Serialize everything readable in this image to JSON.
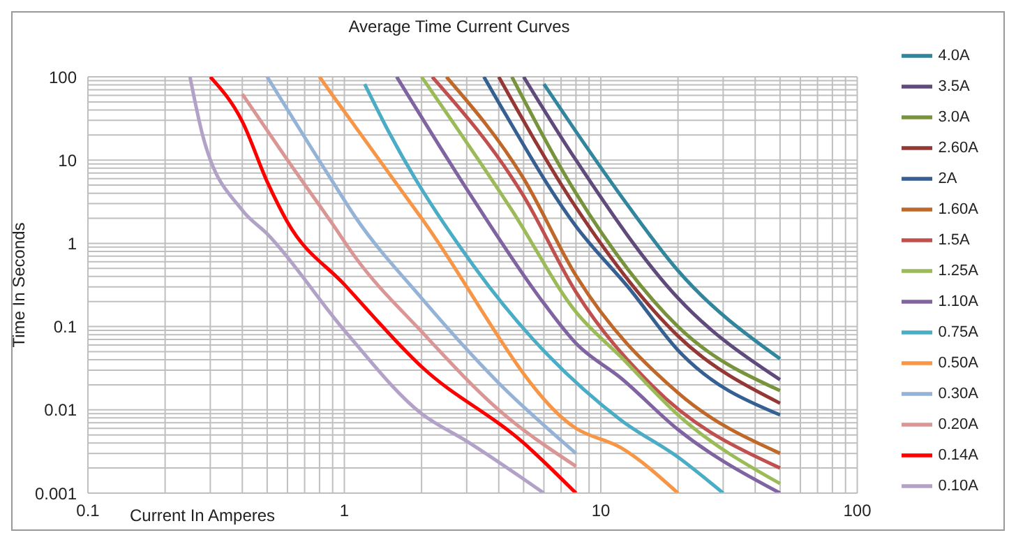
{
  "chart_data": {
    "type": "line",
    "title": "Average Time Current Curves",
    "xlabel": "Current In Amperes",
    "ylabel": "Time In Seconds",
    "log": "xy",
    "grid": true,
    "legend": "right",
    "marker": "none",
    "line_style": "solid",
    "xlim": [
      0.1,
      100
    ],
    "ylim": [
      0.001,
      100
    ],
    "xticks": [
      0.1,
      {
        "value": 0.2,
        "label": null
      },
      {
        "value": 0.3,
        "label": null
      },
      {
        "value": 0.4,
        "label": null
      },
      {
        "value": 0.5,
        "label": null
      },
      {
        "value": 0.6,
        "label": null
      },
      {
        "value": 0.7,
        "label": null
      },
      {
        "value": 0.8,
        "label": null
      },
      {
        "value": 0.9,
        "label": null
      },
      1,
      {
        "value": 2,
        "label": null
      },
      {
        "value": 3,
        "label": null
      },
      {
        "value": 4,
        "label": null
      },
      {
        "value": 5,
        "label": null
      },
      {
        "value": 6,
        "label": null
      },
      {
        "value": 7,
        "label": null
      },
      {
        "value": 8,
        "label": null
      },
      {
        "value": 9,
        "label": null
      },
      10,
      {
        "value": 20,
        "label": null
      },
      {
        "value": 30,
        "label": null
      },
      {
        "value": 40,
        "label": null
      },
      {
        "value": 50,
        "label": null
      },
      {
        "value": 60,
        "label": null
      },
      {
        "value": 70,
        "label": null
      },
      {
        "value": 80,
        "label": null
      },
      {
        "value": 90,
        "label": null
      },
      100
    ],
    "yticks": [
      0.001,
      {
        "value": 0.002,
        "label": null
      },
      {
        "value": 0.003,
        "label": null
      },
      {
        "value": 0.004,
        "label": null
      },
      {
        "value": 0.005,
        "label": null
      },
      {
        "value": 0.006,
        "label": null
      },
      {
        "value": 0.007,
        "label": null
      },
      {
        "value": 0.008,
        "label": null
      },
      {
        "value": 0.009,
        "label": null
      },
      0.01,
      {
        "value": 0.02,
        "label": null
      },
      {
        "value": 0.03,
        "label": null
      },
      {
        "value": 0.04,
        "label": null
      },
      {
        "value": 0.05,
        "label": null
      },
      {
        "value": 0.06,
        "label": null
      },
      {
        "value": 0.07,
        "label": null
      },
      {
        "value": 0.08,
        "label": null
      },
      {
        "value": 0.09,
        "label": null
      },
      0.1,
      {
        "value": 0.2,
        "label": null
      },
      {
        "value": 0.3,
        "label": null
      },
      {
        "value": 0.4,
        "label": null
      },
      {
        "value": 0.5,
        "label": null
      },
      {
        "value": 0.6,
        "label": null
      },
      {
        "value": 0.7,
        "label": null
      },
      {
        "value": 0.8,
        "label": null
      },
      {
        "value": 0.9,
        "label": null
      },
      1,
      {
        "value": 2,
        "label": null
      },
      {
        "value": 3,
        "label": null
      },
      {
        "value": 4,
        "label": null
      },
      {
        "value": 5,
        "label": null
      },
      {
        "value": 6,
        "label": null
      },
      {
        "value": 7,
        "label": null
      },
      {
        "value": 8,
        "label": null
      },
      {
        "value": 9,
        "label": null
      },
      10,
      {
        "value": 20,
        "label": null
      },
      {
        "value": 30,
        "label": null
      },
      {
        "value": 40,
        "label": null
      },
      {
        "value": 50,
        "label": null
      },
      {
        "value": 60,
        "label": null
      },
      {
        "value": 70,
        "label": null
      },
      {
        "value": 80,
        "label": null
      },
      {
        "value": 90,
        "label": null
      },
      100
    ],
    "series": [
      {
        "name": "4.0A",
        "color": "#31859c",
        "x": [
          6,
          8,
          12,
          20,
          50
        ],
        "values": [
          82,
          22,
          3.7,
          0.47,
          0.041
        ]
      },
      {
        "name": "3.5A",
        "color": "#604a7b",
        "x": [
          5,
          8,
          20,
          50
        ],
        "values": [
          100,
          10,
          0.22,
          0.023
        ]
      },
      {
        "name": "3.0A",
        "color": "#77933c",
        "x": [
          4.5,
          8,
          20,
          50
        ],
        "values": [
          100,
          4,
          0.1,
          0.017
        ]
      },
      {
        "name": "2.60A",
        "color": "#953735",
        "x": [
          4,
          8,
          20,
          50
        ],
        "values": [
          100,
          2.7,
          0.077,
          0.012
        ]
      },
      {
        "name": "2A",
        "color": "#376092",
        "x": [
          3.5,
          4,
          8,
          13,
          20,
          50
        ],
        "values": [
          100,
          49,
          1.6,
          0.28,
          0.052,
          0.0087
        ]
      },
      {
        "name": "1.60A",
        "color": "#c0682a",
        "x": [
          2.5,
          5,
          8,
          20,
          50
        ],
        "values": [
          100,
          6,
          0.41,
          0.016,
          0.003
        ]
      },
      {
        "name": "1.5A",
        "color": "#c0504d",
        "x": [
          2.2,
          5,
          8,
          16,
          50
        ],
        "values": [
          100,
          3.7,
          0.26,
          0.019,
          0.002
        ]
      },
      {
        "name": "1.25A",
        "color": "#9bbb59",
        "x": [
          2,
          4.5,
          8,
          12,
          20,
          50
        ],
        "values": [
          100,
          2.5,
          0.15,
          0.043,
          0.0087,
          0.0013
        ]
      },
      {
        "name": "1.10A",
        "color": "#8064a2",
        "x": [
          1.6,
          3.2,
          6,
          8,
          12,
          20,
          50
        ],
        "values": [
          100,
          3.3,
          0.19,
          0.063,
          0.024,
          0.0058,
          0.001
        ]
      },
      {
        "name": "0.75A",
        "color": "#4bacc6",
        "x": [
          1.2,
          1.5,
          3.2,
          12,
          20,
          30
        ],
        "values": [
          82,
          21,
          0.53,
          0.0075,
          0.0027,
          0.001
        ]
      },
      {
        "name": "0.50A",
        "color": "#f79646",
        "x": [
          0.8,
          0.9,
          2,
          8,
          12,
          20
        ],
        "values": [
          100,
          60,
          2,
          0.006,
          0.0035,
          0.001
        ]
      },
      {
        "name": "0.30A",
        "color": "#95b3d7",
        "x": [
          0.5,
          0.9,
          1.1,
          2,
          4,
          8
        ],
        "values": [
          100,
          5.5,
          2.1,
          0.22,
          0.021,
          0.003
        ]
      },
      {
        "name": "0.20A",
        "color": "#d99694",
        "x": [
          0.4,
          0.6,
          0.9,
          1.1,
          2,
          4,
          8
        ],
        "values": [
          62,
          10,
          1.7,
          0.69,
          0.087,
          0.01,
          0.0021
        ]
      },
      {
        "name": "0.14A",
        "color": "#ff0000",
        "x": [
          0.3,
          0.4,
          0.5,
          0.6,
          1,
          2,
          5,
          8
        ],
        "values": [
          100,
          29,
          5.5,
          1.8,
          0.32,
          0.033,
          0.004,
          0.001
        ]
      },
      {
        "name": "0.10A",
        "color": "#b3a2c7",
        "x": [
          0.25,
          0.28,
          0.4,
          0.5,
          1,
          2,
          3,
          6
        ],
        "values": [
          100,
          20,
          2.5,
          1.3,
          0.09,
          0.009,
          0.0042,
          0.001
        ]
      }
    ]
  }
}
